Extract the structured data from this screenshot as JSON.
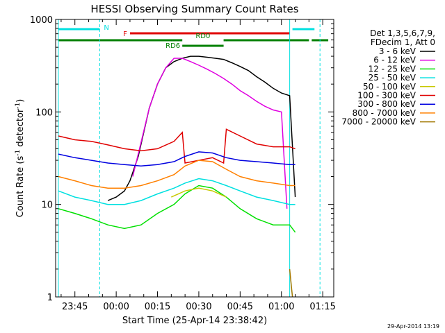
{
  "chart_data": {
    "type": "line",
    "title": "HESSI Observing Summary Count Rates",
    "xlabel": "Start Time (25-Apr-14 23:38:42)",
    "ylabel_main": "Count Rate (s",
    "ylabel_sup1": "-1",
    "ylabel_mid": " detector",
    "ylabel_sup2": "-1",
    "ylabel_end": ")",
    "yscale": "log",
    "ylim": [
      1,
      1000
    ],
    "xlim": [
      "23:38",
      "01:19"
    ],
    "x_ticks": [
      "23:45",
      "00:00",
      "00:15",
      "00:30",
      "00:45",
      "01:00",
      "01:15"
    ],
    "y_ticks": [
      "1",
      "10",
      "100",
      "1000"
    ],
    "timestamp": "29-Apr-2014 13:19",
    "legend": {
      "header_1": "Det 1,3,5,6,7,9,",
      "header_2": "FDecim 1, Att 0",
      "placement": "right",
      "entries": [
        {
          "label": "3 - 6 keV",
          "color": "#000000"
        },
        {
          "label": "6 - 12 keV",
          "color": "#e000e0"
        },
        {
          "label": "12 - 25 keV",
          "color": "#00e000"
        },
        {
          "label": "25 - 50 keV",
          "color": "#00e0e0"
        },
        {
          "label": "50 - 100 keV",
          "color": "#c8c800"
        },
        {
          "label": "100 - 300 keV",
          "color": "#e00000"
        },
        {
          "label": "300 - 800 keV",
          "color": "#0000e0"
        },
        {
          "label": "800 - 7000 keV",
          "color": "#ff8000"
        },
        {
          "label": "7000 - 20000 keV",
          "color": "#a07800"
        }
      ]
    },
    "flags": [
      {
        "label": "N",
        "color": "#00e0e0",
        "segments": [
          [
            "23:39",
            "23:54"
          ],
          [
            "01:04",
            "01:12"
          ]
        ]
      },
      {
        "label": "F",
        "color": "#e00000",
        "segments": [
          [
            "00:05",
            "01:03"
          ]
        ]
      },
      {
        "label": "RD0",
        "color": "#008000",
        "segments": [
          [
            "23:39",
            "00:24"
          ],
          [
            "00:39",
            "01:10"
          ],
          [
            "01:11",
            "01:17"
          ]
        ]
      },
      {
        "label": "RD6",
        "color": "#008000",
        "segments": [
          [
            "00:24",
            "00:39"
          ]
        ]
      }
    ],
    "vertical_markers": [
      {
        "time": "23:39",
        "style": "solid",
        "color": "#00e0e0"
      },
      {
        "time": "23:54",
        "style": "dashed",
        "color": "#00e0e0"
      },
      {
        "time": "01:03",
        "style": "solid",
        "color": "#00e0e0"
      },
      {
        "time": "01:14",
        "style": "dashed",
        "color": "#00e0e0"
      }
    ],
    "series": [
      {
        "name": "3 - 6 keV",
        "color": "#000000",
        "x": [
          "23:57",
          "00:00",
          "00:03",
          "00:05",
          "00:08",
          "00:12",
          "00:15",
          "00:18",
          "00:21",
          "00:24",
          "00:27",
          "00:30",
          "00:33",
          "00:36",
          "00:39",
          "00:42",
          "00:45",
          "00:48",
          "00:51",
          "00:54",
          "00:57",
          "01:00",
          "01:03",
          "01:05"
        ],
        "y": [
          11,
          12,
          14,
          18,
          33,
          110,
          200,
          300,
          350,
          380,
          400,
          400,
          390,
          380,
          370,
          340,
          310,
          280,
          240,
          210,
          180,
          160,
          150,
          12
        ]
      },
      {
        "name": "6 - 12 keV",
        "color": "#e000e0",
        "x": [
          "00:06",
          "00:08",
          "00:12",
          "00:15",
          "00:18",
          "00:21",
          "00:24",
          "00:27",
          "00:30",
          "00:33",
          "00:36",
          "00:39",
          "00:42",
          "00:45",
          "00:48",
          "00:51",
          "00:54",
          "00:57",
          "01:00",
          "01:02"
        ],
        "y": [
          20,
          35,
          110,
          200,
          300,
          380,
          380,
          350,
          320,
          290,
          260,
          230,
          200,
          170,
          150,
          130,
          115,
          105,
          100,
          9
        ]
      },
      {
        "name": "12 - 25 keV",
        "color": "#00e000",
        "x": [
          "23:39",
          "23:45",
          "23:51",
          "23:57",
          "00:03",
          "00:09",
          "00:15",
          "00:21",
          "00:25",
          "00:30",
          "00:35",
          "00:40",
          "00:45",
          "00:51",
          "00:57",
          "01:03",
          "01:05"
        ],
        "y": [
          9,
          8,
          7,
          6,
          5.5,
          6,
          8,
          10,
          13,
          16,
          15,
          12,
          9,
          7,
          6,
          6,
          5
        ]
      },
      {
        "name": "25 - 50 keV",
        "color": "#00e0e0",
        "x": [
          "23:39",
          "23:45",
          "23:51",
          "23:57",
          "00:03",
          "00:09",
          "00:15",
          "00:21",
          "00:25",
          "00:30",
          "00:35",
          "00:40",
          "00:45",
          "00:51",
          "00:57",
          "01:03",
          "01:05"
        ],
        "y": [
          14,
          12,
          11,
          10,
          10,
          11,
          13,
          15,
          17,
          19,
          18,
          16,
          14,
          12,
          11,
          10,
          10
        ]
      },
      {
        "name": "50 - 100 keV",
        "color": "#c8c800",
        "x": [
          "00:20",
          "00:25",
          "00:30",
          "00:35",
          "00:40"
        ],
        "y": [
          12,
          14,
          15,
          14,
          12
        ]
      },
      {
        "name": "100 - 300 keV",
        "color": "#e00000",
        "x": [
          "23:39",
          "23:45",
          "23:51",
          "23:57",
          "00:03",
          "00:09",
          "00:15",
          "00:21",
          "00:24",
          "00:25",
          "00:30",
          "00:35",
          "00:39",
          "00:40",
          "00:45",
          "00:51",
          "00:57",
          "01:03",
          "01:05"
        ],
        "y": [
          55,
          50,
          48,
          44,
          40,
          38,
          40,
          48,
          60,
          28,
          30,
          32,
          28,
          65,
          55,
          45,
          42,
          42,
          40
        ]
      },
      {
        "name": "300 - 800 keV",
        "color": "#0000e0",
        "x": [
          "23:39",
          "23:45",
          "23:51",
          "23:57",
          "00:03",
          "00:09",
          "00:15",
          "00:21",
          "00:25",
          "00:30",
          "00:35",
          "00:40",
          "00:45",
          "00:51",
          "00:57",
          "01:03",
          "01:05"
        ],
        "y": [
          35,
          32,
          30,
          28,
          27,
          26,
          27,
          29,
          33,
          37,
          36,
          32,
          30,
          29,
          28,
          27,
          27
        ]
      },
      {
        "name": "800 - 7000 keV",
        "color": "#ff8000",
        "x": [
          "23:39",
          "23:45",
          "23:51",
          "23:57",
          "00:03",
          "00:09",
          "00:15",
          "00:21",
          "00:25",
          "00:30",
          "00:35",
          "00:40",
          "00:45",
          "00:51",
          "00:57",
          "01:03",
          "01:05"
        ],
        "y": [
          20,
          18,
          16,
          15,
          15,
          16,
          18,
          21,
          26,
          30,
          29,
          24,
          20,
          18,
          17,
          16,
          16
        ]
      },
      {
        "name": "7000 - 20000 keV",
        "color": "#a07800",
        "x": [
          "01:03",
          "01:04"
        ],
        "y": [
          2,
          1
        ]
      }
    ]
  }
}
